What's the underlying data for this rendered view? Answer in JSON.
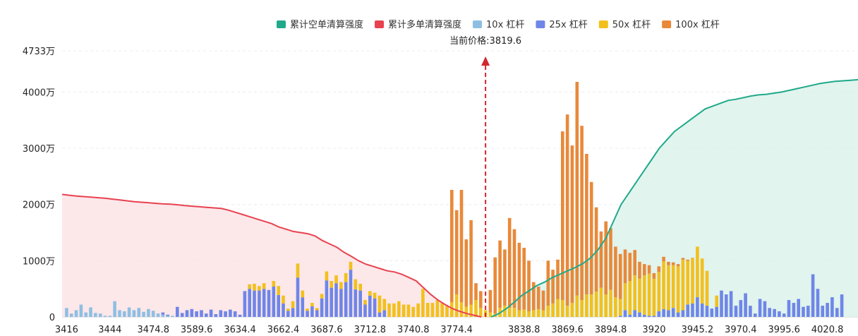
{
  "chart_data": {
    "type": "bar",
    "title": "",
    "current_price_label": "当前价格:3819.6",
    "current_price": 3819.6,
    "legend": [
      {
        "key": "short_cum",
        "label": "累计空单清算强度",
        "color": "#1fa98a"
      },
      {
        "key": "long_cum",
        "label": "累计多单清算强度",
        "color": "#e8424f"
      },
      {
        "key": "lev10",
        "label": "10x 杠杆",
        "color": "#8ebfe3"
      },
      {
        "key": "lev25",
        "label": "25x 杠杆",
        "color": "#6f86e8"
      },
      {
        "key": "lev50",
        "label": "50x 杠杆",
        "color": "#f2c01d"
      },
      {
        "key": "lev100",
        "label": "100x 杠杆",
        "color": "#e8893a"
      }
    ],
    "y_ticks": [
      "0",
      "1000万",
      "2000万",
      "3000万",
      "4000万",
      "4733万"
    ],
    "y_max_wan": 4733,
    "x_tick_labels": [
      "3416",
      "3444",
      "3474.8",
      "3589.6",
      "3634.4",
      "3662.4",
      "3687.6",
      "3712.8",
      "3740.8",
      "3774.4",
      "3838.8",
      "3869.6",
      "3894.8",
      "3920",
      "3945.2",
      "3970.4",
      "3995.6",
      "4020.8"
    ],
    "x_tick_bar_index": [
      0,
      9,
      18,
      27,
      36,
      45,
      54,
      63,
      72,
      81,
      95,
      104,
      113,
      122,
      131,
      140,
      149,
      158
    ],
    "current_price_bar_index": 87,
    "units": "万",
    "bars": {
      "lev10": [
        160,
        60,
        120,
        220,
        80,
        170,
        70,
        60,
        20,
        20,
        280,
        120,
        100,
        170,
        120,
        160,
        90,
        140,
        110,
        60,
        40,
        20,
        20,
        0,
        0,
        0,
        0,
        0,
        0,
        0,
        0,
        0,
        0,
        0,
        0,
        0,
        0,
        0,
        0,
        0,
        0,
        0,
        0,
        0,
        0,
        0,
        0,
        0,
        0,
        0,
        0,
        0,
        0,
        0,
        0,
        0,
        0,
        0,
        0,
        0,
        0,
        0,
        0,
        0,
        0,
        0,
        0,
        0,
        0,
        0,
        0,
        0,
        0,
        0,
        0,
        0,
        0,
        0,
        0,
        0,
        0,
        0,
        0,
        0,
        0,
        0,
        0,
        0,
        0,
        0,
        0,
        0,
        0,
        0,
        0,
        0,
        0,
        0,
        0,
        0,
        0,
        0,
        0,
        0,
        0,
        0,
        0,
        0,
        0,
        0,
        0,
        0,
        0,
        0,
        0,
        0,
        0,
        0,
        0,
        0,
        0,
        0,
        0,
        0,
        0,
        0,
        0,
        0,
        0,
        0,
        0,
        0,
        0,
        0,
        0,
        0,
        0,
        0,
        0,
        0,
        0,
        0,
        0,
        0,
        0,
        0,
        0,
        0,
        0,
        0,
        0,
        0,
        0,
        0,
        0,
        0,
        0,
        0,
        0,
        0,
        0,
        0,
        0,
        0,
        0
      ],
      "lev25": [
        0,
        0,
        0,
        0,
        0,
        0,
        0,
        0,
        0,
        0,
        0,
        0,
        0,
        0,
        0,
        0,
        0,
        0,
        0,
        0,
        40,
        20,
        0,
        180,
        70,
        120,
        140,
        100,
        120,
        60,
        130,
        50,
        120,
        100,
        130,
        100,
        40,
        460,
        500,
        470,
        470,
        500,
        480,
        540,
        390,
        240,
        110,
        160,
        700,
        350,
        110,
        190,
        120,
        330,
        650,
        520,
        600,
        500,
        620,
        840,
        490,
        470,
        220,
        380,
        330,
        80,
        120,
        0,
        0,
        0,
        0,
        0,
        0,
        0,
        0,
        0,
        0,
        0,
        0,
        0,
        0,
        0,
        0,
        0,
        0,
        0,
        0,
        0,
        0,
        0,
        0,
        0,
        0,
        0,
        0,
        0,
        0,
        0,
        0,
        0,
        0,
        0,
        0,
        0,
        0,
        0,
        0,
        0,
        0,
        0,
        0,
        0,
        0,
        0,
        0,
        20,
        120,
        40,
        120,
        80,
        40,
        20,
        20,
        100,
        140,
        120,
        160,
        80,
        120,
        220,
        240,
        350,
        240,
        200,
        150,
        180,
        470,
        400,
        460,
        200,
        300,
        420,
        200,
        60,
        320,
        280,
        160,
        140,
        100,
        60,
        300,
        250,
        320,
        180,
        200,
        760,
        500,
        200,
        250,
        350,
        160,
        400
      ],
      "lev50": [
        0,
        0,
        0,
        0,
        0,
        0,
        0,
        0,
        0,
        0,
        0,
        0,
        0,
        0,
        0,
        0,
        0,
        0,
        0,
        0,
        0,
        0,
        0,
        0,
        0,
        0,
        0,
        0,
        0,
        0,
        0,
        0,
        0,
        0,
        0,
        0,
        0,
        0,
        80,
        120,
        80,
        100,
        0,
        100,
        160,
        140,
        40,
        120,
        250,
        120,
        40,
        60,
        40,
        80,
        160,
        120,
        140,
        120,
        160,
        140,
        180,
        120,
        80,
        80,
        100,
        300,
        200,
        240,
        240,
        280,
        220,
        220,
        180,
        240,
        500,
        250,
        250,
        300,
        250,
        200,
        260,
        400,
        260,
        180,
        220,
        300,
        160,
        120,
        80,
        60,
        160,
        200,
        160,
        160,
        120,
        130,
        100,
        120,
        140,
        120,
        200,
        240,
        320,
        300,
        200,
        250,
        380,
        300,
        400,
        400,
        450,
        520,
        400,
        480,
        350,
        300,
        480,
        600,
        620,
        600,
        700,
        750,
        660,
        700,
        850,
        800,
        760,
        820,
        900,
        780,
        800,
        900,
        800,
        620,
        0,
        200,
        0,
        0,
        0,
        0,
        0,
        0,
        0,
        0,
        0,
        0,
        0,
        0,
        0,
        0,
        0,
        0,
        0,
        0,
        0,
        0,
        0,
        0,
        0,
        0,
        0,
        0,
        0,
        0
      ],
      "lev100": [
        0,
        0,
        0,
        0,
        0,
        0,
        0,
        0,
        0,
        0,
        0,
        0,
        0,
        0,
        0,
        0,
        0,
        0,
        0,
        0,
        0,
        0,
        0,
        0,
        0,
        0,
        0,
        0,
        0,
        0,
        0,
        0,
        0,
        0,
        0,
        0,
        0,
        0,
        0,
        0,
        0,
        0,
        0,
        0,
        0,
        0,
        0,
        0,
        0,
        0,
        0,
        0,
        0,
        0,
        0,
        0,
        0,
        0,
        0,
        0,
        0,
        0,
        0,
        0,
        0,
        0,
        0,
        0,
        0,
        0,
        0,
        0,
        0,
        0,
        0,
        0,
        0,
        0,
        0,
        0,
        2000,
        1500,
        2000,
        1200,
        1500,
        300,
        300,
        0,
        400,
        1000,
        1200,
        1000,
        1600,
        1400,
        1200,
        1100,
        900,
        500,
        400,
        350,
        800,
        600,
        700,
        3000,
        3400,
        2800,
        3800,
        3100,
        2500,
        2000,
        1500,
        1000,
        1300,
        1100,
        900,
        800,
        600,
        500,
        450,
        300,
        200,
        150,
        100,
        100,
        80,
        60,
        50,
        40,
        30,
        20,
        10,
        0,
        0,
        0,
        0,
        0,
        0,
        0,
        0,
        0,
        0,
        0,
        0,
        0,
        0,
        0,
        0,
        0,
        0,
        0,
        0,
        0,
        0,
        0,
        0,
        0,
        0,
        0,
        0,
        0,
        0,
        0
      ]
    },
    "long_cum_curve": [
      2180,
      2165,
      2150,
      2140,
      2130,
      2120,
      2110,
      2095,
      2080,
      2065,
      2050,
      2040,
      2030,
      2020,
      2010,
      2005,
      1995,
      1980,
      1970,
      1960,
      1950,
      1940,
      1930,
      1900,
      1860,
      1820,
      1780,
      1740,
      1700,
      1660,
      1600,
      1560,
      1520,
      1500,
      1480,
      1440,
      1360,
      1300,
      1240,
      1150,
      1080,
      1000,
      940,
      900,
      860,
      820,
      800,
      760,
      700,
      640,
      520,
      400,
      300,
      220,
      150,
      100,
      60,
      30,
      0
    ],
    "short_cum_curve": [
      0,
      60,
      150,
      260,
      380,
      470,
      560,
      620,
      700,
      760,
      820,
      880,
      950,
      1050,
      1200,
      1400,
      1700,
      2000,
      2200,
      2400,
      2600,
      2800,
      3000,
      3150,
      3300,
      3400,
      3500,
      3600,
      3700,
      3750,
      3800,
      3850,
      3870,
      3900,
      3930,
      3950,
      3960,
      3980,
      4000,
      4030,
      4060,
      4090,
      4120,
      4150,
      4170,
      4190,
      4200,
      4210,
      4220
    ]
  }
}
